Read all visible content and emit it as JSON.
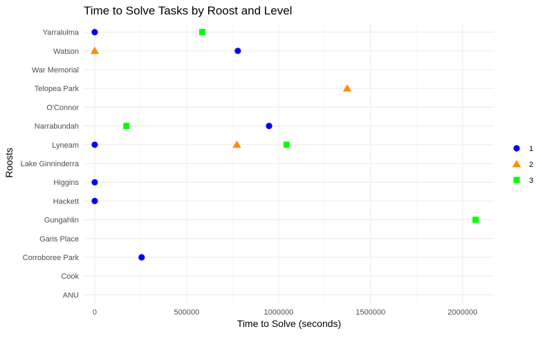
{
  "chart_data": {
    "type": "scatter",
    "title": "Time to Solve Tasks by Roost and Level",
    "xlabel": "Time to Solve (seconds)",
    "ylabel": "Roosts",
    "xlim": [
      -60000,
      2170000
    ],
    "x_ticks": [
      0,
      500000,
      1000000,
      1500000,
      2000000
    ],
    "x_tick_labels": [
      "0",
      "500000",
      "1000000",
      "1500000",
      "2000000"
    ],
    "categories": [
      "ANU",
      "Cook",
      "Corroboree Park",
      "Garis Place",
      "Gungahlin",
      "Hackett",
      "Higgins",
      "Lake Ginninderra",
      "Lyneam",
      "Narrabundah",
      "O'Connor",
      "Telopea Park",
      "War Memorial",
      "Watson",
      "Yarralulma"
    ],
    "grid": true,
    "legend_position": "right",
    "series": [
      {
        "name": "1",
        "shape": "circle",
        "color": "#0000ff",
        "points": [
          {
            "roost": "Yarralulma",
            "x": 0
          },
          {
            "roost": "Watson",
            "x": 778000
          },
          {
            "roost": "Narrabundah",
            "x": 948000
          },
          {
            "roost": "Lyneam",
            "x": 0
          },
          {
            "roost": "Higgins",
            "x": 0
          },
          {
            "roost": "Hackett",
            "x": 0
          },
          {
            "roost": "Corroboree Park",
            "x": 255000
          }
        ]
      },
      {
        "name": "2",
        "shape": "triangle",
        "color": "#ff8c00",
        "points": [
          {
            "roost": "Watson",
            "x": 0
          },
          {
            "roost": "Telopea Park",
            "x": 1373000
          },
          {
            "roost": "Lyneam",
            "x": 773000
          }
        ]
      },
      {
        "name": "3",
        "shape": "square",
        "color": "#00ff00",
        "points": [
          {
            "roost": "Yarralulma",
            "x": 585000
          },
          {
            "roost": "Narrabundah",
            "x": 172000
          },
          {
            "roost": "Lyneam",
            "x": 1043000
          },
          {
            "roost": "Gungahlin",
            "x": 2071000
          }
        ]
      }
    ]
  }
}
